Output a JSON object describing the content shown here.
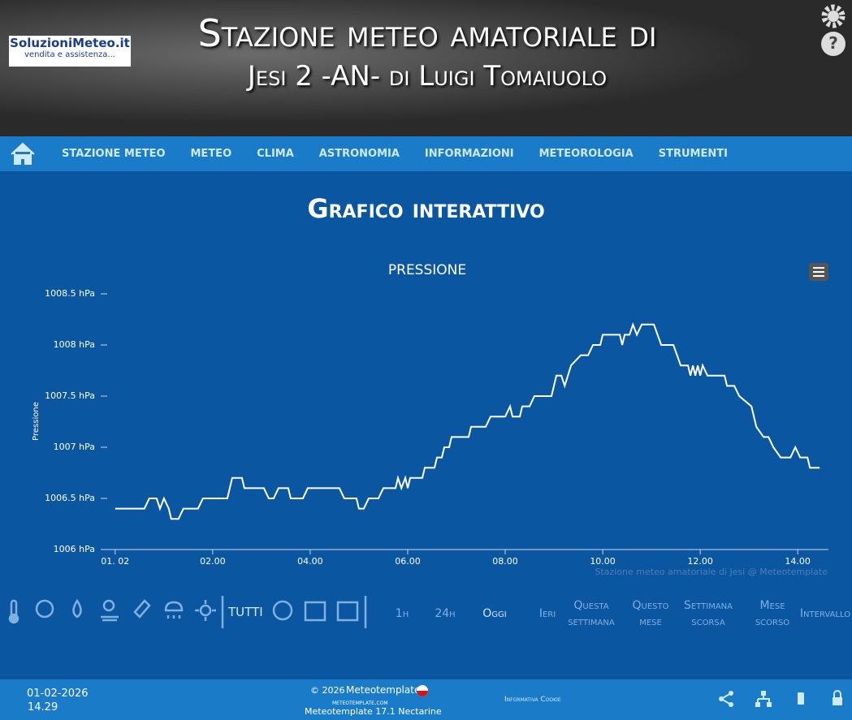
{
  "header": {
    "logo_title": "SoluzioniMeteo.it",
    "logo_subtitle": "vendita e assistenza...",
    "title": "Stazione meteo amatoriale di",
    "subtitle": "Jesi 2 -AN- di Luigi Tomaiuolo"
  },
  "nav": [
    "STAZIONE METEO",
    "METEO",
    "CLIMA",
    "ASTRONOMIA",
    "INFORMAZIONI",
    "METEOROLOGIA",
    "STRUMENTI"
  ],
  "heading": "Grafico interattivo",
  "chart_data": {
    "type": "line",
    "title": "PRESSIONE",
    "y_label": "Pressione",
    "credit": "Stazione meteo amatoriale di Jesi @ Meteotemplate",
    "color": "#ffffff",
    "xlim": [
      -0.13,
      14.63
    ],
    "xticks": [
      {
        "value": 0,
        "label": "01. 02"
      },
      {
        "value": 2,
        "label": "02.00"
      },
      {
        "value": 4,
        "label": "04.00"
      },
      {
        "value": 6,
        "label": "06.00"
      },
      {
        "value": 8,
        "label": "08.00"
      },
      {
        "value": 10,
        "label": "10.00"
      },
      {
        "value": 12,
        "label": "12.00"
      },
      {
        "value": 14,
        "label": "14.00"
      }
    ],
    "ylim": [
      1006,
      1008.5
    ],
    "yticks": [
      {
        "value": 1006,
        "label": "1006 hPa"
      },
      {
        "value": 1006.5,
        "label": "1006.5 hPa"
      },
      {
        "value": 1007,
        "label": "1007 hPa"
      },
      {
        "value": 1007.5,
        "label": "1007.5 hPa"
      },
      {
        "value": 1008,
        "label": "1008 hPa"
      },
      {
        "value": 1008.5,
        "label": "1008.5 hPa"
      }
    ],
    "x": [
      0,
      0.6,
      0.7,
      0.85,
      0.92,
      1.0,
      1.1,
      1.15,
      1.3,
      1.4,
      1.7,
      1.8,
      2.3,
      2.4,
      2.6,
      2.65,
      3.05,
      3.15,
      3.25,
      3.35,
      3.55,
      3.6,
      3.85,
      3.95,
      4.6,
      4.7,
      4.95,
      5.0,
      5.1,
      5.2,
      5.4,
      5.5,
      5.75,
      5.8,
      5.87,
      5.95,
      6.0,
      6.05,
      6.3,
      6.35,
      6.55,
      6.6,
      6.7,
      6.75,
      6.85,
      6.9,
      7.25,
      7.3,
      7.6,
      7.7,
      8.0,
      8.1,
      8.15,
      8.3,
      8.35,
      8.5,
      8.6,
      8.95,
      9.05,
      9.15,
      9.22,
      9.35,
      9.55,
      9.7,
      9.8,
      9.95,
      10.0,
      10.35,
      10.4,
      10.45,
      10.55,
      10.62,
      10.7,
      10.8,
      11.05,
      11.2,
      11.45,
      11.6,
      11.75,
      11.8,
      11.85,
      11.9,
      11.95,
      12.0,
      12.05,
      12.15,
      12.5,
      12.55,
      12.7,
      12.8,
      13.05,
      13.15,
      13.3,
      13.4,
      13.5,
      13.65,
      13.85,
      13.95,
      14.05,
      14.2,
      14.25,
      14.45
    ],
    "values": [
      1006.4,
      1006.4,
      1006.5,
      1006.5,
      1006.4,
      1006.5,
      1006.4,
      1006.3,
      1006.3,
      1006.4,
      1006.4,
      1006.5,
      1006.5,
      1006.7,
      1006.7,
      1006.6,
      1006.6,
      1006.5,
      1006.5,
      1006.6,
      1006.6,
      1006.5,
      1006.5,
      1006.6,
      1006.6,
      1006.5,
      1006.5,
      1006.4,
      1006.4,
      1006.5,
      1006.5,
      1006.6,
      1006.6,
      1006.7,
      1006.6,
      1006.7,
      1006.6,
      1006.7,
      1006.7,
      1006.8,
      1006.8,
      1006.9,
      1006.9,
      1007.0,
      1007.0,
      1007.1,
      1007.1,
      1007.2,
      1007.2,
      1007.3,
      1007.3,
      1007.4,
      1007.3,
      1007.3,
      1007.4,
      1007.4,
      1007.5,
      1007.5,
      1007.7,
      1007.7,
      1007.6,
      1007.8,
      1007.9,
      1007.9,
      1008.0,
      1008.0,
      1008.1,
      1008.1,
      1008.0,
      1008.1,
      1008.1,
      1008.2,
      1008.1,
      1008.2,
      1008.2,
      1008.0,
      1008.0,
      1007.8,
      1007.8,
      1007.7,
      1007.8,
      1007.7,
      1007.8,
      1007.7,
      1007.8,
      1007.7,
      1007.7,
      1007.6,
      1007.6,
      1007.5,
      1007.4,
      1007.2,
      1007.1,
      1007.1,
      1007.0,
      1006.9,
      1006.9,
      1007.0,
      1006.9,
      1006.9,
      1006.8,
      1006.8
    ]
  },
  "toolbar": {
    "all": "TUTTI",
    "ranges": [
      "1h",
      "24h",
      "Oggi",
      "Ieri",
      "Questa settimana",
      "Questo mese",
      "Settimana scorsa",
      "Mese scorso",
      "Intervallo"
    ]
  },
  "footer": {
    "date": "01-02-2026",
    "time": "14.29",
    "copyright": "© 2026",
    "brand": "Meteotemplate",
    "site": "meteotemplate.com",
    "version": "Meteotemplate 17.1 Nectarine",
    "cookie": "Informativa Cookie"
  }
}
